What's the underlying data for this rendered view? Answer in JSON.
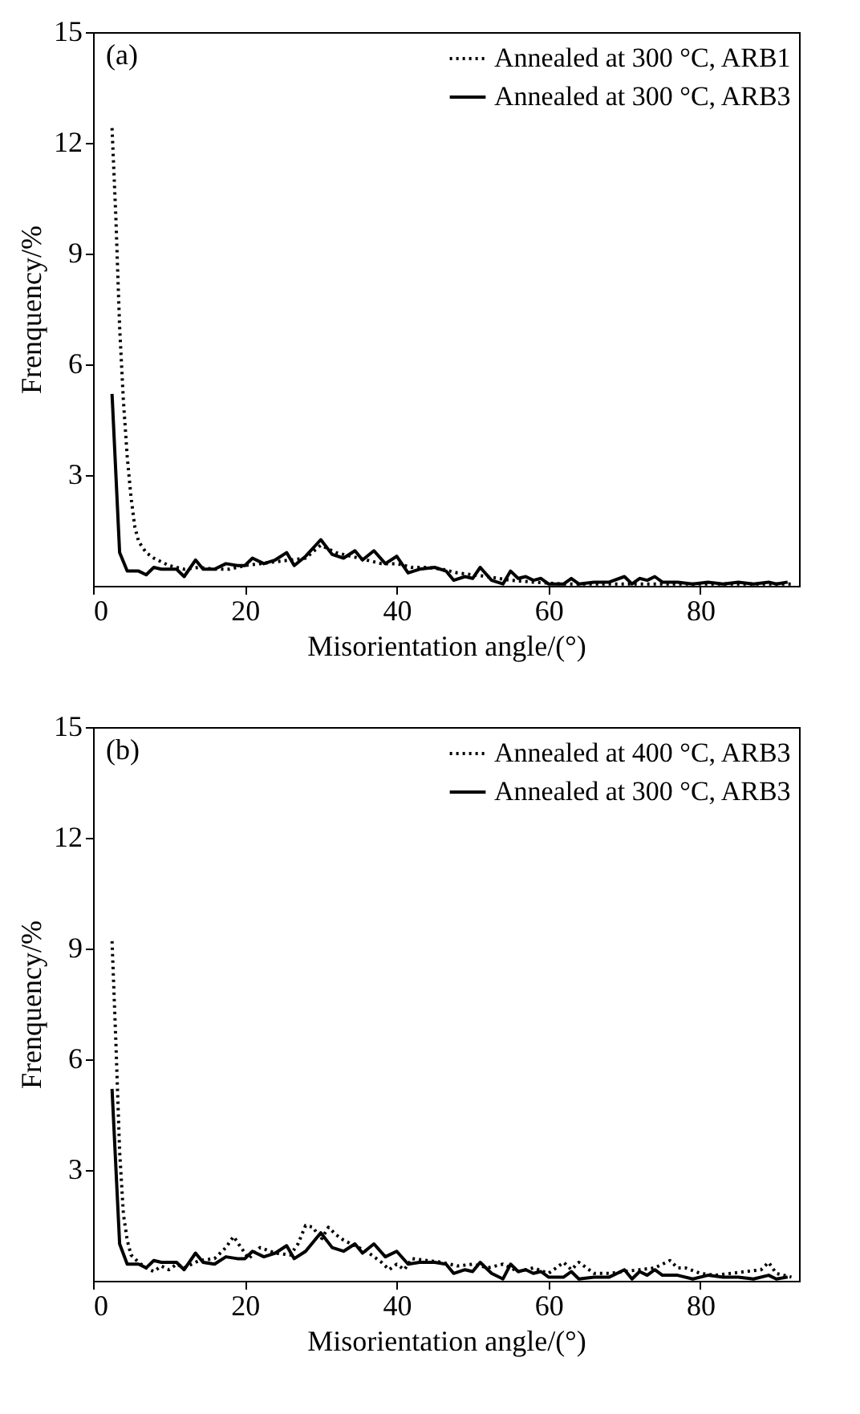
{
  "chart_data": [
    {
      "type": "line",
      "xlabel": "Misorientation angle/(°)",
      "ylabel": "Frenquency/%",
      "annotations": [
        "(a)"
      ],
      "xlim": [
        0,
        93
      ],
      "ylim": [
        0,
        15
      ],
      "xticks": [
        0,
        20,
        40,
        60,
        80
      ],
      "yticks": [
        3,
        6,
        9,
        12,
        15
      ],
      "grid": false,
      "legend": "top right",
      "series": [
        {
          "name": "Annealed at 300 °C, ARB1",
          "color": "#000000",
          "line_style": "dotted",
          "x": [
            2.5,
            3,
            3.5,
            4,
            4.5,
            5,
            5.5,
            6,
            7,
            8,
            9,
            10,
            12,
            14,
            16,
            18,
            20,
            22,
            24,
            26,
            28,
            30,
            32,
            34,
            36,
            38,
            40,
            42,
            44,
            46,
            48,
            50,
            52,
            55,
            58,
            62,
            66,
            70,
            75,
            80,
            85,
            92
          ],
          "values": [
            12.4,
            10,
            7.0,
            5.0,
            3.5,
            2.4,
            1.6,
            1.2,
            0.9,
            0.75,
            0.65,
            0.55,
            0.45,
            0.5,
            0.45,
            0.45,
            0.55,
            0.6,
            0.65,
            0.7,
            0.75,
            1.1,
            0.9,
            0.8,
            0.7,
            0.6,
            0.6,
            0.5,
            0.5,
            0.45,
            0.35,
            0.3,
            0.25,
            0.15,
            0.1,
            0.05,
            0.05,
            0.05,
            0.05,
            0.05,
            0.05,
            0.05
          ]
        },
        {
          "name": "Annealed at 300 °C, ARB3",
          "color": "#000000",
          "line_style": "solid",
          "x": [
            2.5,
            3.5,
            4.5,
            6,
            7,
            8,
            9,
            11,
            12,
            13.5,
            14.5,
            16,
            17.5,
            19,
            20,
            21,
            22.5,
            24,
            25.5,
            26.5,
            28,
            30,
            31.5,
            33,
            34.5,
            35.5,
            37,
            38.5,
            40,
            41.5,
            43,
            45,
            46.5,
            47.5,
            49,
            50,
            51,
            52.5,
            54,
            55,
            56,
            57,
            58,
            59,
            60,
            62,
            63,
            64,
            66,
            68,
            70,
            71,
            72,
            73,
            74,
            75,
            77,
            79,
            81,
            83,
            85,
            87,
            89,
            90,
            91.5
          ],
          "values": [
            5.2,
            0.9,
            0.4,
            0.4,
            0.3,
            0.5,
            0.45,
            0.45,
            0.25,
            0.7,
            0.45,
            0.45,
            0.6,
            0.55,
            0.55,
            0.75,
            0.6,
            0.7,
            0.9,
            0.55,
            0.8,
            1.25,
            0.85,
            0.75,
            0.95,
            0.7,
            0.95,
            0.6,
            0.8,
            0.35,
            0.45,
            0.5,
            0.4,
            0.15,
            0.25,
            0.2,
            0.5,
            0.15,
            0.05,
            0.4,
            0.2,
            0.25,
            0.15,
            0.2,
            0.05,
            0.05,
            0.2,
            0.05,
            0.1,
            0.1,
            0.25,
            0.05,
            0.2,
            0.15,
            0.25,
            0.1,
            0.1,
            0.05,
            0.1,
            0.05,
            0.1,
            0.05,
            0.1,
            0.05,
            0.1
          ]
        }
      ]
    },
    {
      "type": "line",
      "xlabel": "Misorientation angle/(°)",
      "ylabel": "Frenquency/%",
      "annotations": [
        "(b)"
      ],
      "xlim": [
        0,
        93
      ],
      "ylim": [
        0,
        15
      ],
      "xticks": [
        0,
        20,
        40,
        60,
        80
      ],
      "yticks": [
        3,
        6,
        9,
        12,
        15
      ],
      "grid": false,
      "legend": "top right",
      "series": [
        {
          "name": "Annealed at 400 °C, ARB3",
          "color": "#000000",
          "line_style": "dotted",
          "x": [
            2.5,
            3,
            3.5,
            4,
            4.5,
            5,
            6,
            7,
            8,
            9,
            10,
            11,
            12,
            14,
            16,
            17.5,
            18.5,
            19.5,
            20.5,
            22,
            24,
            26,
            27,
            28,
            29,
            30,
            31,
            32,
            33,
            34,
            36,
            38,
            39,
            40,
            41,
            42,
            44,
            46,
            48,
            50,
            52,
            54,
            56,
            58,
            60,
            62,
            63,
            64,
            66,
            68,
            70,
            72,
            74,
            76,
            77,
            78,
            80,
            82,
            84,
            86,
            88,
            89,
            90,
            92
          ],
          "values": [
            9.2,
            6.5,
            3.5,
            1.8,
            1.1,
            0.7,
            0.5,
            0.35,
            0.25,
            0.4,
            0.3,
            0.45,
            0.35,
            0.55,
            0.6,
            0.9,
            1.2,
            0.9,
            0.6,
            0.9,
            0.75,
            0.7,
            1.0,
            1.5,
            1.45,
            1.1,
            1.45,
            1.25,
            1.1,
            1.0,
            0.8,
            0.5,
            0.3,
            0.45,
            0.3,
            0.6,
            0.55,
            0.5,
            0.4,
            0.45,
            0.35,
            0.45,
            0.25,
            0.35,
            0.2,
            0.5,
            0.3,
            0.5,
            0.2,
            0.2,
            0.25,
            0.3,
            0.35,
            0.55,
            0.35,
            0.35,
            0.2,
            0.15,
            0.2,
            0.25,
            0.3,
            0.5,
            0.2,
            0.1
          ]
        },
        {
          "name": "Annealed at 300 °C, ARB3",
          "color": "#000000",
          "line_style": "solid",
          "x": [
            2.5,
            3.5,
            4.5,
            6,
            7,
            8,
            9,
            11,
            12,
            13.5,
            14.5,
            16,
            17.5,
            19,
            20,
            21,
            22.5,
            24,
            25.5,
            26.5,
            28,
            30,
            31.5,
            33,
            34.5,
            35.5,
            37,
            38.5,
            40,
            41.5,
            43,
            45,
            46.5,
            47.5,
            49,
            50,
            51,
            52.5,
            54,
            55,
            56,
            57,
            58,
            59,
            60,
            62,
            63,
            64,
            66,
            68,
            70,
            71,
            72,
            73,
            74,
            75,
            77,
            79,
            81,
            83,
            85,
            87,
            89,
            90,
            91.5
          ],
          "values": [
            5.2,
            1.0,
            0.45,
            0.45,
            0.35,
            0.55,
            0.5,
            0.5,
            0.3,
            0.75,
            0.5,
            0.45,
            0.65,
            0.6,
            0.6,
            0.8,
            0.65,
            0.75,
            0.95,
            0.6,
            0.8,
            1.3,
            0.9,
            0.8,
            1.0,
            0.75,
            1.0,
            0.65,
            0.8,
            0.45,
            0.5,
            0.5,
            0.45,
            0.2,
            0.3,
            0.25,
            0.5,
            0.2,
            0.05,
            0.45,
            0.25,
            0.3,
            0.2,
            0.25,
            0.1,
            0.1,
            0.25,
            0.05,
            0.1,
            0.1,
            0.3,
            0.05,
            0.25,
            0.15,
            0.3,
            0.15,
            0.15,
            0.05,
            0.15,
            0.1,
            0.1,
            0.05,
            0.15,
            0.05,
            0.1
          ]
        }
      ]
    }
  ]
}
